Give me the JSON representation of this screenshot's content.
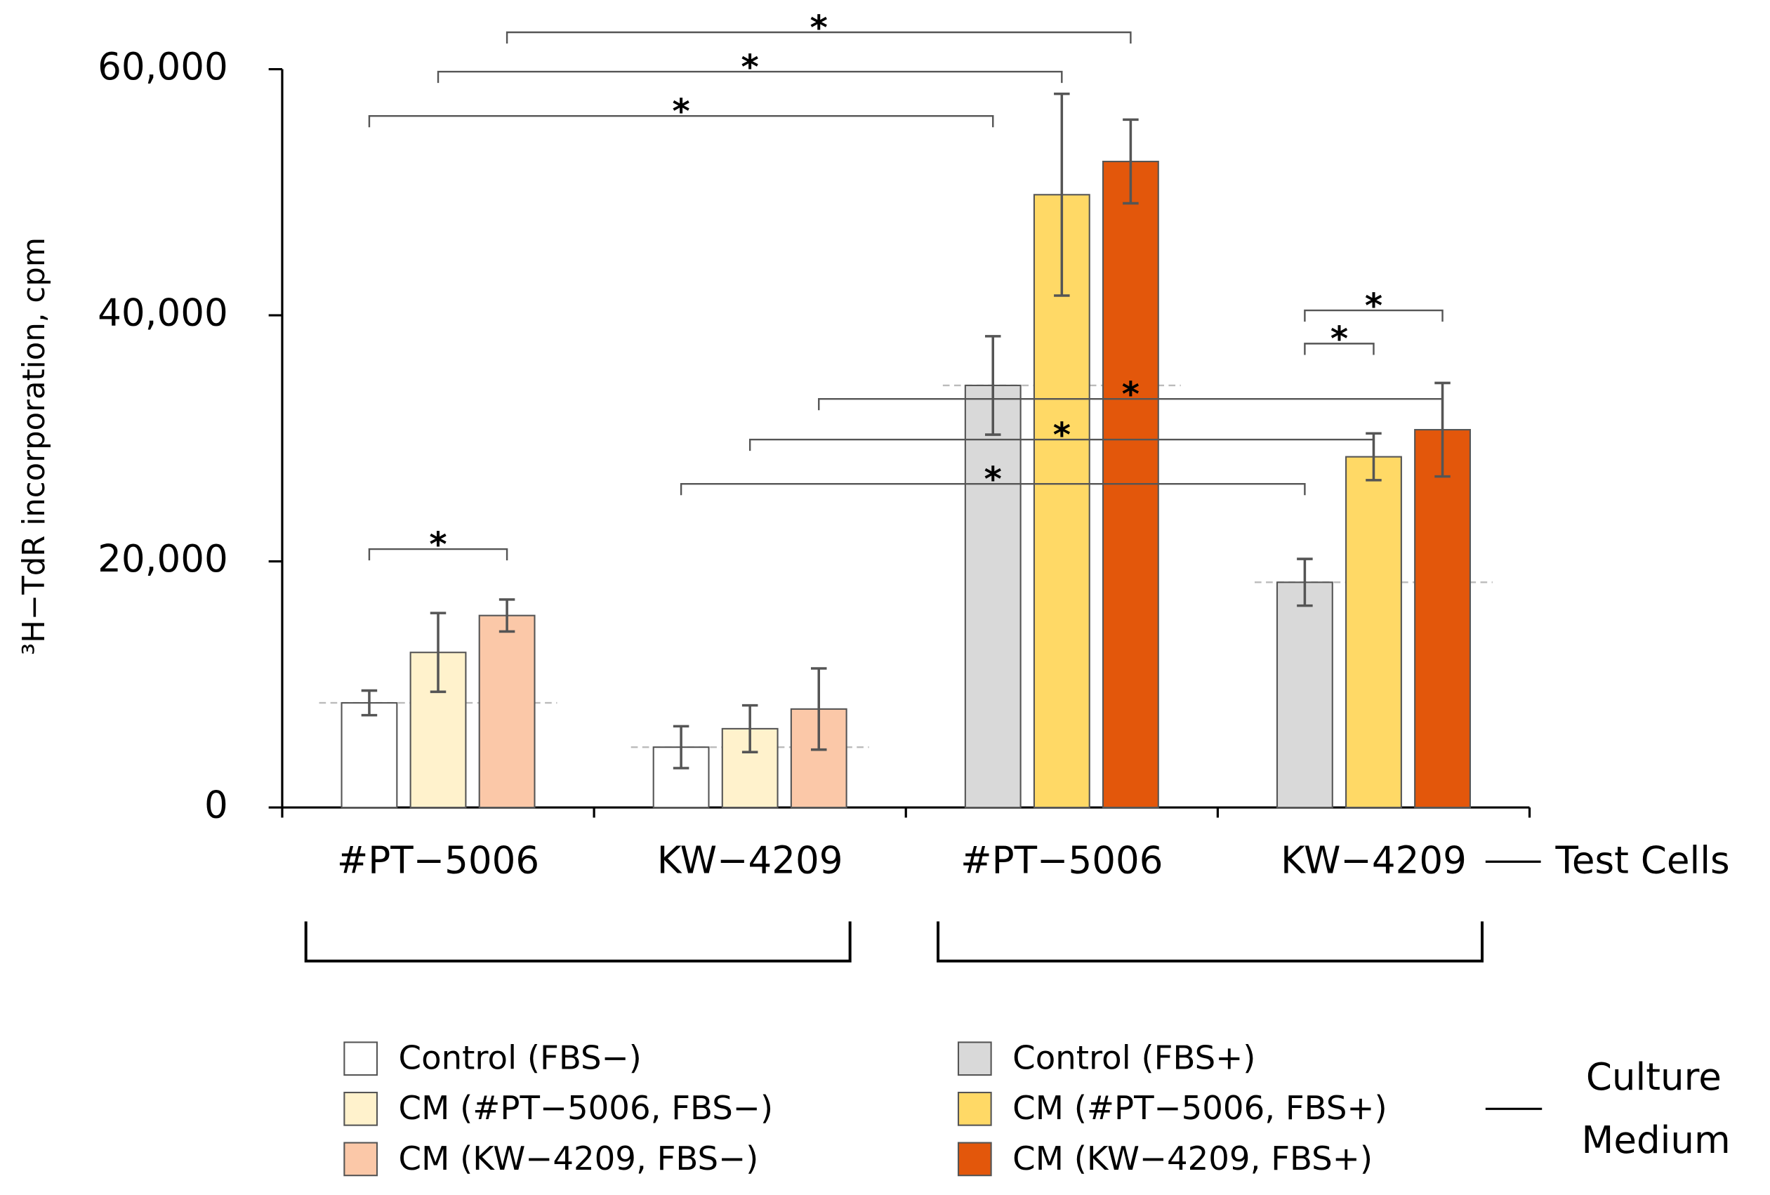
{
  "chart_data": {
    "type": "bar",
    "y_label": "³H−TdR incorporation, cpm",
    "categories": [
      "#PT−5006",
      "KW−4209",
      "#PT−5006",
      "KW−4209"
    ],
    "categories_label": "Test Cells",
    "legend_label": [
      "Culture",
      "Medium"
    ],
    "series": [
      {
        "name": "Control (FBS−)",
        "color": "#ffffff",
        "values": [
          8500,
          4900,
          null,
          null
        ],
        "errors": [
          1000,
          1700,
          null,
          null
        ]
      },
      {
        "name": "CM (#PT−5006, FBS−)",
        "color": "#fff2cc",
        "values": [
          12600,
          6400,
          null,
          null
        ],
        "errors": [
          3200,
          1900,
          null,
          null
        ]
      },
      {
        "name": "CM (KW−4209, FBS−)",
        "color": "#fbc8a8",
        "values": [
          15600,
          8000,
          null,
          null
        ],
        "errors": [
          1300,
          3300,
          null,
          null
        ]
      },
      {
        "name": "Control (FBS+)",
        "color": "#d9d9d9",
        "values": [
          null,
          null,
          34300,
          18300
        ],
        "errors": [
          null,
          null,
          4000,
          1900
        ]
      },
      {
        "name": "CM (#PT−5006, FBS+)",
        "color": "#ffd966",
        "values": [
          null,
          null,
          49800,
          28500
        ],
        "errors": [
          null,
          null,
          8200,
          1900
        ]
      },
      {
        "name": "CM (KW−4209, FBS+)",
        "color": "#e3570b",
        "values": [
          null,
          null,
          52500,
          30700
        ],
        "errors": [
          null,
          null,
          3400,
          3800
        ]
      }
    ],
    "ylim": [
      0,
      60000
    ],
    "yticks": [
      0,
      {
        "value": 20000,
        "label": "20,000"
      },
      {
        "value": 40000,
        "label": "40,000"
      },
      {
        "value": 60000,
        "label": "60,000"
      }
    ],
    "significance": [
      {
        "label": "*",
        "from": [
          0,
          0
        ],
        "to": [
          0,
          2
        ],
        "y": 21000
      },
      {
        "label": "*",
        "from": [
          0,
          2
        ],
        "to": [
          2,
          5
        ],
        "y": 63000
      },
      {
        "label": "*",
        "from": [
          0,
          1
        ],
        "to": [
          2,
          4
        ],
        "y": 59800
      },
      {
        "label": "*",
        "from": [
          0,
          0
        ],
        "to": [
          2,
          3
        ],
        "y": 56200
      },
      {
        "label": "*",
        "from": [
          3,
          3
        ],
        "to": [
          3,
          5
        ],
        "y": 40400
      },
      {
        "label": "*",
        "from": [
          3,
          3
        ],
        "to": [
          3,
          4
        ],
        "y": 37700
      },
      {
        "label": "*",
        "from": [
          1,
          2
        ],
        "to": [
          3,
          5
        ],
        "y": 33200
      },
      {
        "label": "*",
        "from": [
          1,
          1
        ],
        "to": [
          3,
          4
        ],
        "y": 29900
      },
      {
        "label": "*",
        "from": [
          1,
          0
        ],
        "to": [
          3,
          3
        ],
        "y": 26300
      }
    ]
  }
}
